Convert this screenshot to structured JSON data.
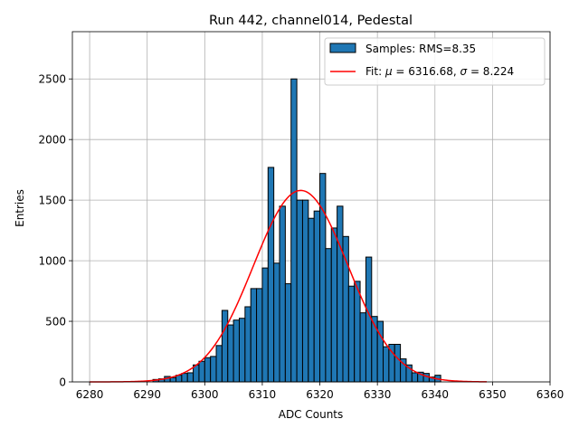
{
  "chart_data": {
    "type": "bar",
    "title": "Run 442, channel014, Pedestal",
    "xlabel": "ADC Counts",
    "ylabel": "Entries",
    "xlim": [
      6277,
      6360
    ],
    "ylim": [
      0,
      2890
    ],
    "xticks": [
      6280,
      6290,
      6300,
      6310,
      6320,
      6330,
      6340,
      6350,
      6360
    ],
    "yticks": [
      0,
      500,
      1000,
      1500,
      2000,
      2500
    ],
    "grid": true,
    "legend_position": "top-right",
    "colors": {
      "bars": "#1f77b4",
      "bar_edge": "#000000",
      "fit": "#ff0000",
      "grid": "#b0b0b0"
    },
    "bin_width": 1,
    "bins": {
      "x_start": [
        6291,
        6292,
        6293,
        6294,
        6295,
        6296,
        6297,
        6298,
        6299,
        6300,
        6301,
        6302,
        6303,
        6304,
        6305,
        6306,
        6307,
        6308,
        6309,
        6310,
        6311,
        6312,
        6313,
        6314,
        6315,
        6316,
        6317,
        6318,
        6319,
        6320,
        6321,
        6322,
        6323,
        6324,
        6325,
        6326,
        6327,
        6328,
        6329,
        6330,
        6331,
        6332,
        6333,
        6334,
        6335,
        6336,
        6337,
        6338,
        6339,
        6340
      ],
      "counts": [
        20,
        25,
        45,
        35,
        55,
        70,
        75,
        140,
        170,
        200,
        210,
        300,
        590,
        470,
        510,
        525,
        620,
        770,
        770,
        940,
        1770,
        980,
        1450,
        810,
        2500,
        1500,
        1500,
        1350,
        1410,
        1720,
        1100,
        1270,
        1450,
        1200,
        790,
        830,
        570,
        1030,
        540,
        500,
        290,
        310,
        310,
        190,
        140,
        75,
        80,
        70,
        40,
        55
      ]
    },
    "fit": {
      "mu": 6316.68,
      "sigma": 8.224,
      "amplitude": 1580,
      "x_range": [
        6280,
        6349
      ]
    },
    "legend": [
      {
        "name": "Samples: RMS=8.35",
        "kind": "bar"
      },
      {
        "name_prefix": "Fit: ",
        "name_mu": "μ",
        "name_mid": " = 6316.68, ",
        "name_sigma": "σ",
        "name_suffix": " = 8.224",
        "kind": "line"
      }
    ]
  }
}
